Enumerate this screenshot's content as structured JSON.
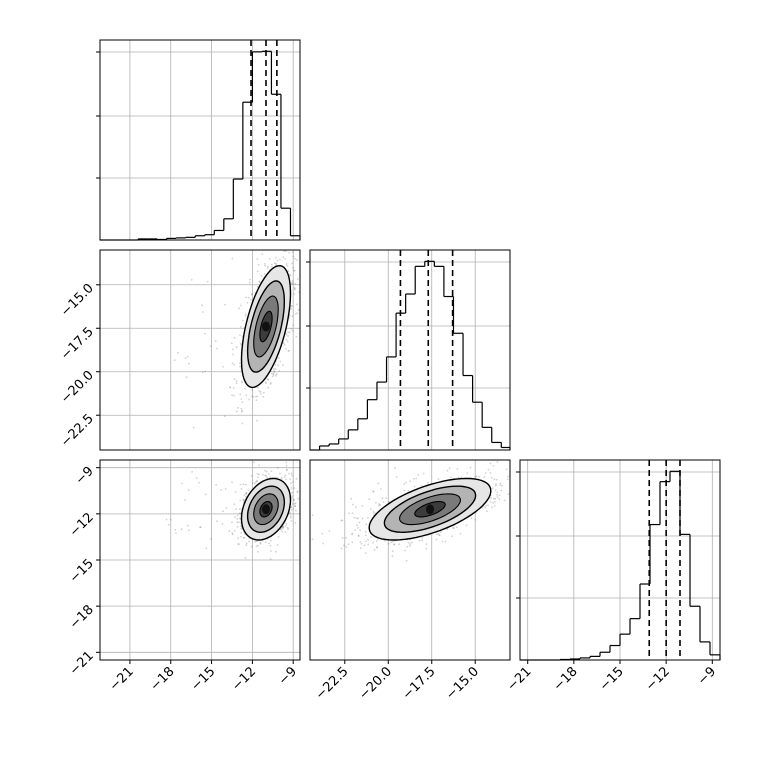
{
  "figure": {
    "type": "corner-plot"
  },
  "colors": {
    "line": "#000000",
    "grid": "#b0b0b0",
    "points": "#7f7f7f",
    "background": "#ffffff"
  },
  "chart_data": [
    {
      "id": "hist-0",
      "type": "histogram",
      "xlim": [
        -23.2,
        -8.5
      ],
      "grid": true,
      "xticks": [
        -21,
        -18,
        -15,
        -12,
        -9
      ],
      "bins": [
        [
          -23.2,
          -22.5,
          0
        ],
        [
          -22.5,
          -21.8,
          0
        ],
        [
          -21.8,
          -21.1,
          0
        ],
        [
          -21.1,
          -20.4,
          0
        ],
        [
          -20.4,
          -19.7,
          2
        ],
        [
          -19.7,
          -19.0,
          2
        ],
        [
          -19.0,
          -18.3,
          1
        ],
        [
          -18.3,
          -17.6,
          3
        ],
        [
          -17.6,
          -16.9,
          4
        ],
        [
          -16.9,
          -16.2,
          5
        ],
        [
          -16.2,
          -15.5,
          8
        ],
        [
          -15.5,
          -14.8,
          10
        ],
        [
          -14.8,
          -14.1,
          18
        ],
        [
          -14.1,
          -13.4,
          40
        ],
        [
          -13.4,
          -12.7,
          115
        ],
        [
          -12.7,
          -12.0,
          260
        ],
        [
          -12.0,
          -11.3,
          355
        ],
        [
          -11.3,
          -10.6,
          356
        ],
        [
          -10.6,
          -9.9,
          275
        ],
        [
          -9.9,
          -9.2,
          60
        ],
        [
          -9.2,
          -8.5,
          8
        ]
      ],
      "quantiles": [
        -12.1,
        -11.0,
        -10.2
      ]
    },
    {
      "id": "hist-1",
      "type": "histogram",
      "xlim": [
        -24.5,
        -13.0
      ],
      "grid": true,
      "xticks": [
        "-22.5",
        "-20.0",
        "-17.5",
        "-15.0"
      ],
      "bins": [
        [
          -24.5,
          -23.95,
          0
        ],
        [
          -23.95,
          -23.4,
          8
        ],
        [
          -23.4,
          -22.85,
          12
        ],
        [
          -22.85,
          -22.3,
          22
        ],
        [
          -22.3,
          -21.75,
          40
        ],
        [
          -21.75,
          -21.2,
          62
        ],
        [
          -21.2,
          -20.65,
          100
        ],
        [
          -20.65,
          -20.1,
          135
        ],
        [
          -20.1,
          -19.55,
          185
        ],
        [
          -19.55,
          -19.0,
          272
        ],
        [
          -19.0,
          -18.45,
          310
        ],
        [
          -18.45,
          -17.9,
          365
        ],
        [
          -17.9,
          -17.35,
          375
        ],
        [
          -17.35,
          -16.8,
          365
        ],
        [
          -16.8,
          -16.25,
          305
        ],
        [
          -16.25,
          -15.7,
          232
        ],
        [
          -15.7,
          -15.15,
          148
        ],
        [
          -15.15,
          -14.6,
          95
        ],
        [
          -14.6,
          -14.05,
          45
        ],
        [
          -14.05,
          -13.5,
          15
        ],
        [
          -13.5,
          -13.0,
          5
        ]
      ],
      "quantiles": [
        -19.3,
        -17.7,
        -16.3
      ]
    },
    {
      "id": "hist-2",
      "type": "histogram",
      "xlim": [
        -21.5,
        -8.5
      ],
      "grid": true,
      "xticks": [
        -21,
        -18,
        -15,
        -12,
        -9
      ],
      "bins": [
        [
          -21.5,
          -20.85,
          0
        ],
        [
          -20.85,
          -20.2,
          0
        ],
        [
          -20.2,
          -19.55,
          0
        ],
        [
          -19.55,
          -18.9,
          0
        ],
        [
          -18.9,
          -18.25,
          1
        ],
        [
          -18.25,
          -17.6,
          2
        ],
        [
          -17.6,
          -16.95,
          4
        ],
        [
          -16.95,
          -16.3,
          7
        ],
        [
          -16.3,
          -15.65,
          15
        ],
        [
          -15.65,
          -15.0,
          28
        ],
        [
          -15.0,
          -14.35,
          50
        ],
        [
          -14.35,
          -13.7,
          80
        ],
        [
          -13.7,
          -13.05,
          147
        ],
        [
          -13.05,
          -12.4,
          262
        ],
        [
          -12.4,
          -11.75,
          345
        ],
        [
          -11.75,
          -11.1,
          365
        ],
        [
          -11.1,
          -10.45,
          243
        ],
        [
          -10.45,
          -9.8,
          104
        ],
        [
          -9.8,
          -9.15,
          35
        ],
        [
          -9.15,
          -8.5,
          10
        ]
      ],
      "quantiles": [
        -13.1,
        -12.0,
        -11.1
      ]
    },
    {
      "id": "scatter-1-0",
      "type": "scatter-contour",
      "xlim": [
        -23.2,
        -8.5
      ],
      "ylim": [
        -24.5,
        -13.0
      ],
      "grid": true,
      "yticks": [
        "-15.0",
        "-17.5",
        "-20.0",
        "-22.5"
      ],
      "center": [
        -11.0,
        -17.4
      ],
      "sd": [
        0.9,
        1.75
      ],
      "rho": 0.55,
      "contour_levels": [
        0.5,
        1.0,
        1.5,
        2.0
      ]
    },
    {
      "id": "scatter-2-0",
      "type": "scatter-contour",
      "xlim": [
        -23.2,
        -8.5
      ],
      "ylim": [
        -21.5,
        -8.5
      ],
      "grid": true,
      "xticks": [
        -21,
        -18,
        -15,
        -12,
        -9
      ],
      "yticks": [
        -9,
        -12,
        -15,
        -18,
        -21
      ],
      "center": [
        -11.0,
        -11.7
      ],
      "sd": [
        0.9,
        1.0
      ],
      "rho": 0.3,
      "contour_levels": [
        0.5,
        1.0,
        1.5,
        2.0
      ]
    },
    {
      "id": "scatter-2-1",
      "type": "scatter-contour",
      "xlim": [
        -24.5,
        -13.0
      ],
      "ylim": [
        -21.5,
        -8.5
      ],
      "grid": true,
      "xticks": [
        "-22.5",
        "-20.0",
        "-17.5",
        "-15.0"
      ],
      "center": [
        -17.6,
        -11.7
      ],
      "sd": [
        1.75,
        1.0
      ],
      "rho": 0.6,
      "contour_levels": [
        0.5,
        1.0,
        1.5,
        2.0
      ]
    }
  ]
}
